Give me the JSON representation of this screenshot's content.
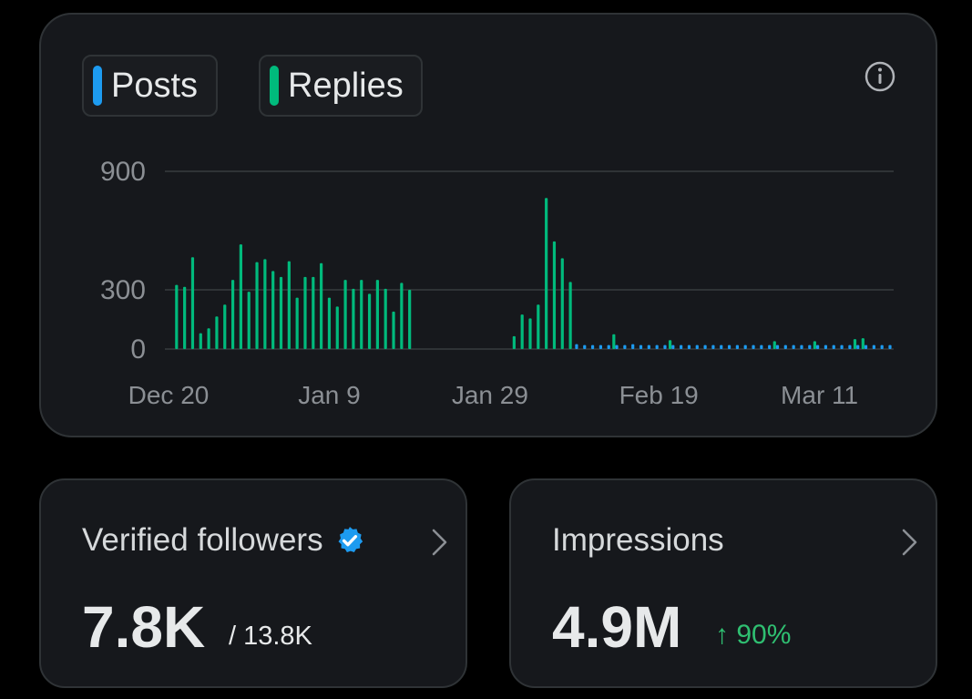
{
  "chart": {
    "legend": [
      {
        "label": "Posts",
        "color": "#1d9bf0"
      },
      {
        "label": "Replies",
        "color": "#00ba7c"
      }
    ],
    "info_icon": "info-icon"
  },
  "chart_data": {
    "type": "bar",
    "title": "",
    "xlabel": "",
    "ylabel": "",
    "ylim": [
      0,
      900
    ],
    "y_ticks": [
      "900",
      "300",
      "0"
    ],
    "y_tick_values": [
      900,
      300,
      0
    ],
    "x_ticks": [
      "Dec 20",
      "Jan 9",
      "Jan 29",
      "Feb 19",
      "Mar 11"
    ],
    "x_tick_indices": [
      0,
      20,
      40,
      61,
      81
    ],
    "grid": true,
    "days": 91,
    "series": [
      {
        "name": "Replies",
        "color": "#00ba7c",
        "values": [
          0,
          325,
          315,
          465,
          80,
          105,
          165,
          225,
          350,
          530,
          290,
          440,
          455,
          395,
          365,
          445,
          260,
          365,
          365,
          435,
          260,
          215,
          350,
          305,
          350,
          280,
          350,
          305,
          190,
          335,
          300,
          0,
          0,
          0,
          0,
          0,
          0,
          0,
          0,
          0,
          0,
          0,
          0,
          65,
          175,
          155,
          225,
          765,
          545,
          460,
          340,
          0,
          0,
          0,
          0,
          0,
          0,
          0,
          0,
          0,
          0,
          0,
          0,
          0,
          0,
          0,
          0,
          0,
          0,
          0,
          0,
          0,
          0,
          0,
          0,
          0,
          0,
          0,
          0,
          0,
          0,
          0,
          0,
          0,
          0,
          0,
          0,
          0,
          0,
          0,
          0
        ]
      },
      {
        "name": "Posts",
        "color": "#1d9bf0",
        "values": [
          0,
          0,
          0,
          0,
          0,
          0,
          0,
          0,
          0,
          0,
          0,
          0,
          0,
          0,
          0,
          0,
          0,
          0,
          0,
          0,
          0,
          0,
          0,
          0,
          0,
          0,
          0,
          0,
          0,
          0,
          0,
          0,
          0,
          0,
          0,
          0,
          0,
          0,
          0,
          0,
          0,
          0,
          0,
          0,
          0,
          0,
          0,
          0,
          0,
          0,
          0,
          25,
          20,
          20,
          20,
          20,
          20,
          20,
          25,
          20,
          20,
          20,
          20,
          20,
          20,
          20,
          20,
          20,
          20,
          20,
          20,
          20,
          20,
          20,
          20,
          20,
          20,
          20,
          20,
          20,
          20,
          20,
          20,
          20,
          20,
          20,
          20,
          20,
          20,
          20,
          20
        ]
      }
    ],
    "replies_extra": {
      "indices": [
        55,
        62,
        75,
        80,
        85,
        86
      ],
      "values": [
        75,
        45,
        40,
        40,
        50,
        55
      ]
    }
  },
  "followers": {
    "title": "Verified followers",
    "value": "7.8K",
    "total": "/ 13.8K",
    "badge_color": "#1d9bf0"
  },
  "impressions": {
    "title": "Impressions",
    "value": "4.9M",
    "change": "↑ 90%",
    "change_color": "#2fbf71"
  }
}
